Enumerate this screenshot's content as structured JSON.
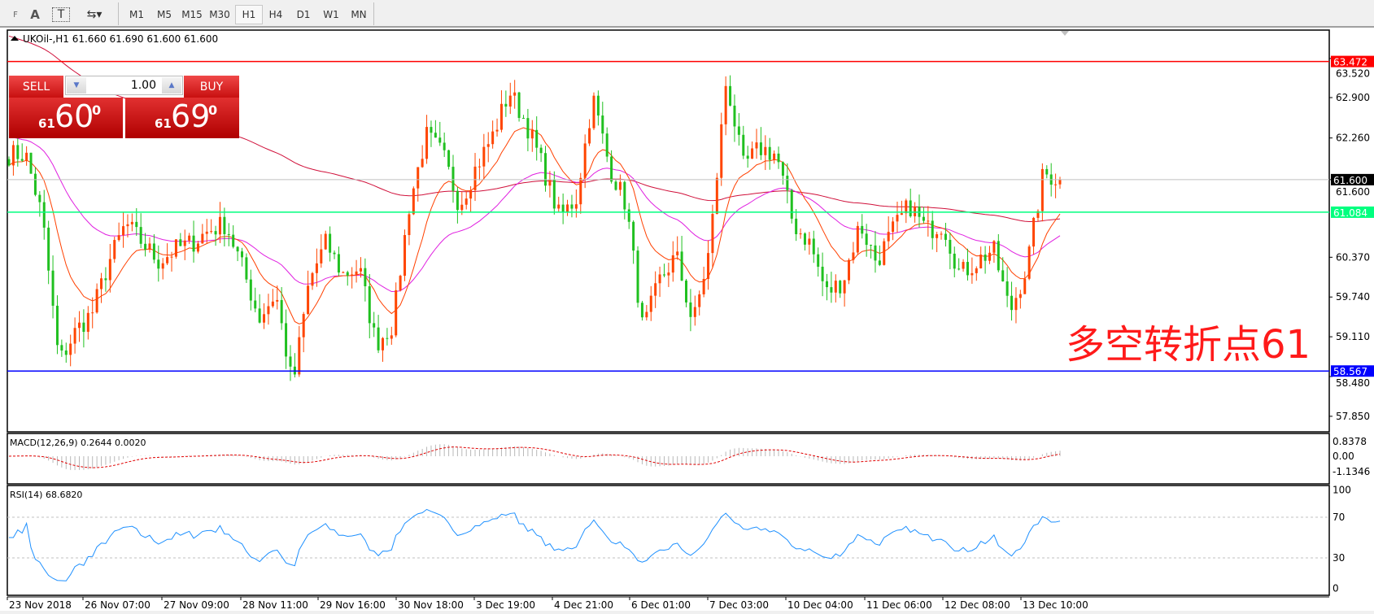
{
  "toolbar": {
    "tools": [
      {
        "name": "fibo-icon",
        "glyph": "F"
      },
      {
        "name": "text-icon",
        "glyph": "A"
      },
      {
        "name": "text-label-icon",
        "glyph": "T"
      },
      {
        "name": "arrows-icon",
        "glyph": "⇆▾"
      }
    ],
    "timeframes": [
      "M1",
      "M5",
      "M15",
      "M30",
      "H1",
      "H4",
      "D1",
      "W1",
      "MN"
    ],
    "active_timeframe": "H1"
  },
  "chart": {
    "header": "UKOil-,H1  61.660 61.690 61.600 61.600",
    "symbol": "UKOil-",
    "period": "H1",
    "ohlc": [
      61.66,
      61.69,
      61.6,
      61.6
    ],
    "price_ticks": [
      "63.520",
      "62.900",
      "62.260",
      "61.600",
      "60.370",
      "59.740",
      "59.110",
      "58.480",
      "57.850"
    ],
    "price_tick_values": [
      63.52,
      62.9,
      62.26,
      61.6,
      60.37,
      59.74,
      59.11,
      58.48,
      57.85
    ],
    "levels": [
      {
        "label": "63.472",
        "value": 63.472,
        "color": "#ff0000"
      },
      {
        "label": "61.084",
        "value": 61.084,
        "color": "#00ff7f"
      },
      {
        "label": "58.567",
        "value": 58.567,
        "color": "#0000ff"
      }
    ],
    "bid_line": {
      "label": "61.600",
      "value": 61.6
    },
    "approx_closes": [
      62.0,
      62.0,
      61.0,
      58.7,
      59.2,
      59.5,
      60.3,
      60.9,
      60.6,
      60.3,
      60.5,
      60.6,
      60.8,
      60.9,
      60.2,
      59.4,
      59.8,
      58.3,
      60.0,
      60.6,
      60.1,
      60.2,
      59.0,
      59.3,
      61.2,
      62.3,
      62.0,
      61.2,
      61.8,
      62.3,
      63.0,
      62.5,
      61.8,
      61.0,
      61.3,
      62.9,
      61.8,
      61.2,
      59.2,
      60.0,
      60.4,
      59.3,
      60.5,
      63.2,
      61.8,
      62.1,
      62.0,
      60.9,
      60.6,
      59.8,
      60.0,
      60.9,
      60.3,
      60.8,
      61.2,
      60.8,
      60.9,
      60.1,
      60.3,
      60.5,
      59.5,
      60.2,
      61.7,
      61.6
    ],
    "up_color": "#ff4500",
    "down_color": "#20c020",
    "time_labels": [
      "23 Nov 2018",
      "26 Nov 07:00",
      "27 Nov 09:00",
      "28 Nov 11:00",
      "29 Nov 16:00",
      "30 Nov 18:00",
      "3 Dec 19:00",
      "4 Dec 21:00",
      "6 Dec 01:00",
      "7 Dec 03:00",
      "10 Dec 04:00",
      "11 Dec 06:00",
      "12 Dec 08:00",
      "13 Dec 10:00"
    ],
    "annotation": "多空转折点61"
  },
  "macd": {
    "header": "MACD(12,26,9) 0.2644 0.0020",
    "ticks": [
      "0.8378",
      "0.00",
      "-1.1346"
    ]
  },
  "rsi": {
    "header": "RSI(14) 68.6820",
    "ticks": [
      "100",
      "70",
      "30",
      "0"
    ],
    "levels": [
      70,
      30
    ],
    "color": "#1e90ff"
  },
  "trade_panel": {
    "sell_label": "SELL",
    "buy_label": "BUY",
    "lot": "1.00",
    "sell": {
      "prefix": "61",
      "big": "60",
      "sup": "0"
    },
    "buy": {
      "prefix": "61",
      "big": "69",
      "sup": "0"
    }
  }
}
